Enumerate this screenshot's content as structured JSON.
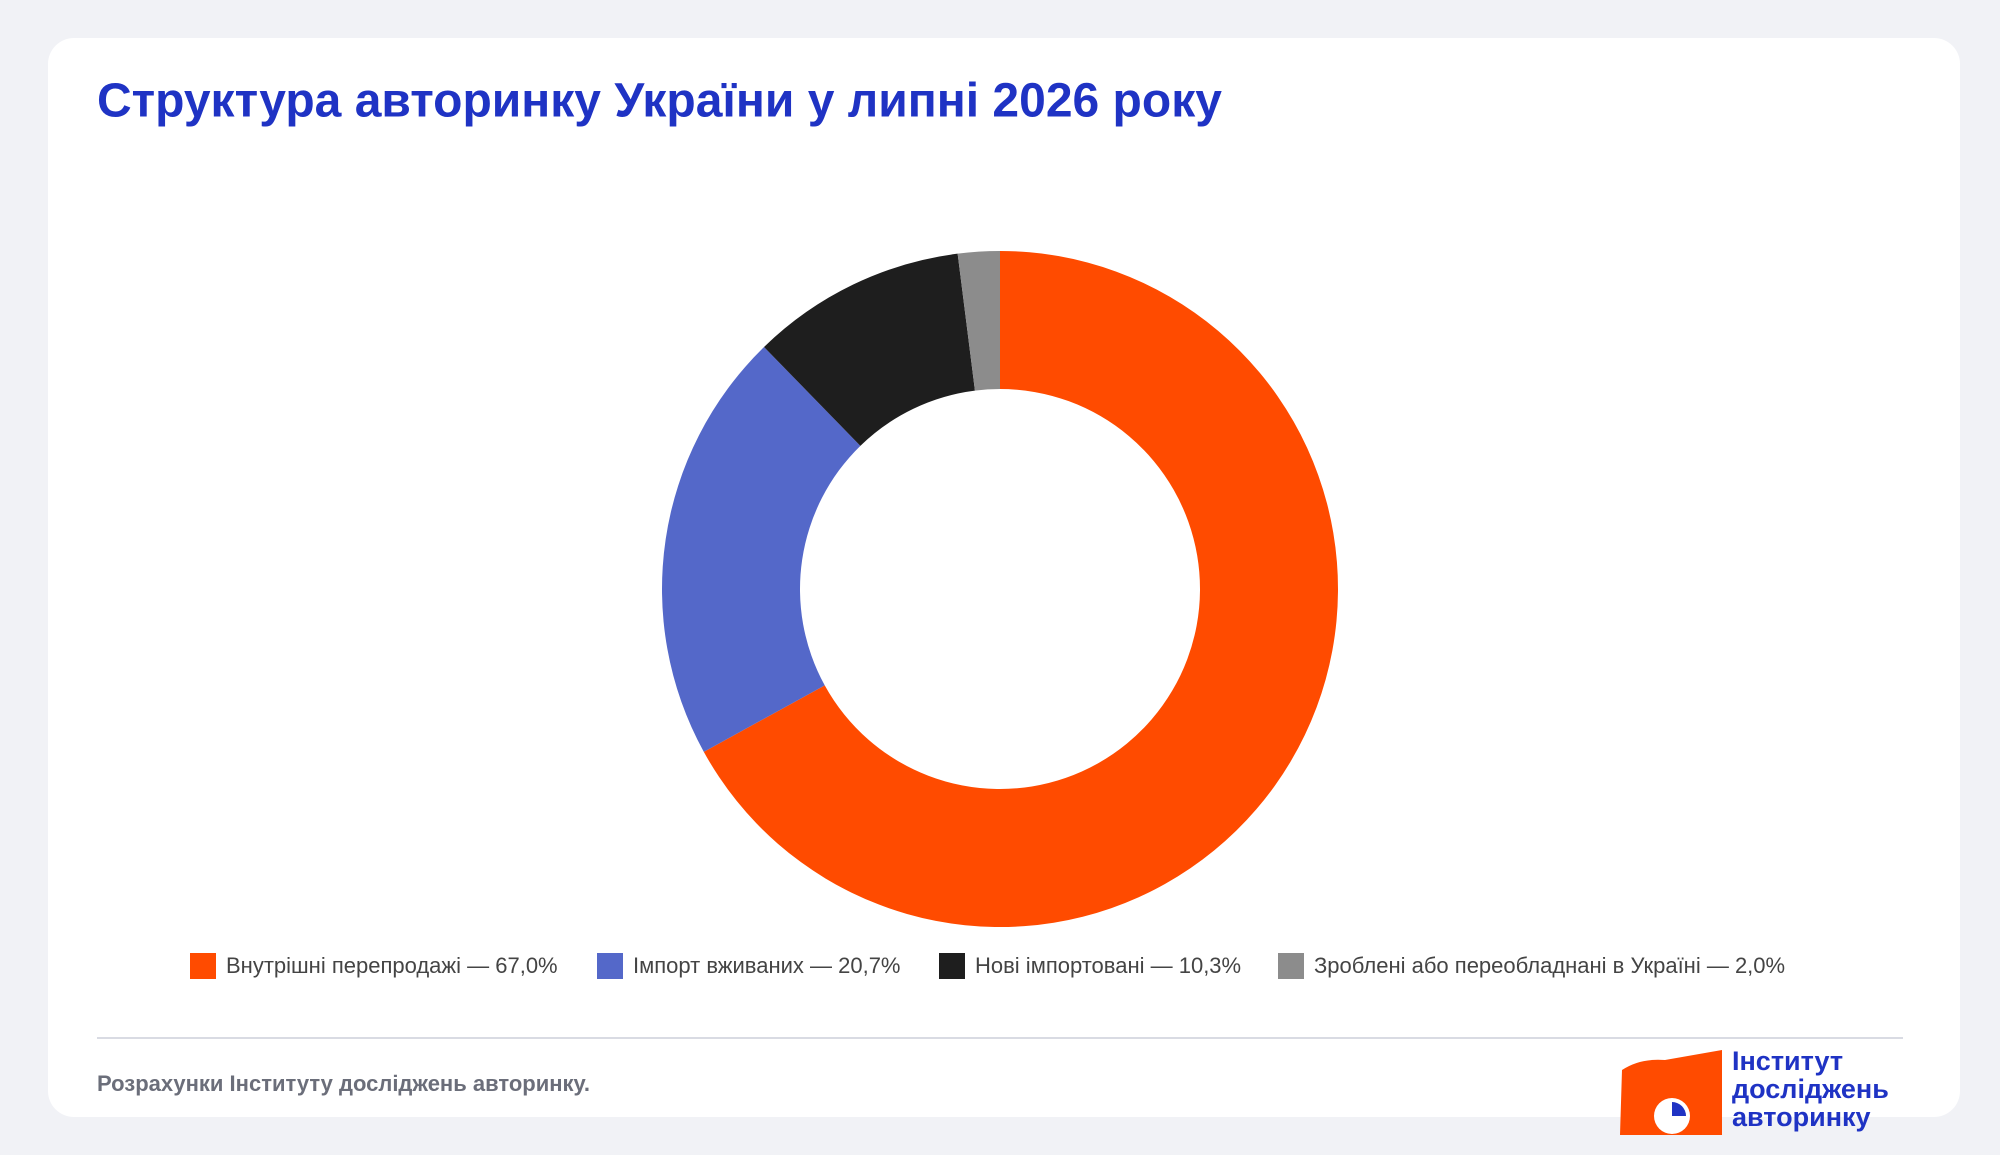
{
  "chart_data": {
    "type": "donut",
    "title": "Структура авторинку України у липні 2026 року",
    "categories": [
      "Внутрішні перепродажі — 67,0%",
      "Імпорт вживаних — 20,7%",
      "Нові імпортовані — 10,3%",
      "Зроблені або переобладнані в Україні — 2,0%"
    ],
    "values": [
      67.0,
      20.7,
      10.3,
      2.0
    ],
    "colors": [
      "#ff4b00",
      "#5468c9",
      "#1e1e1e",
      "#8c8c8c"
    ]
  },
  "footer": {
    "source": "Розрахунки Інституту досліджень авторинку.",
    "logo": [
      "Інститут",
      "досліджень",
      "авторинку"
    ]
  }
}
